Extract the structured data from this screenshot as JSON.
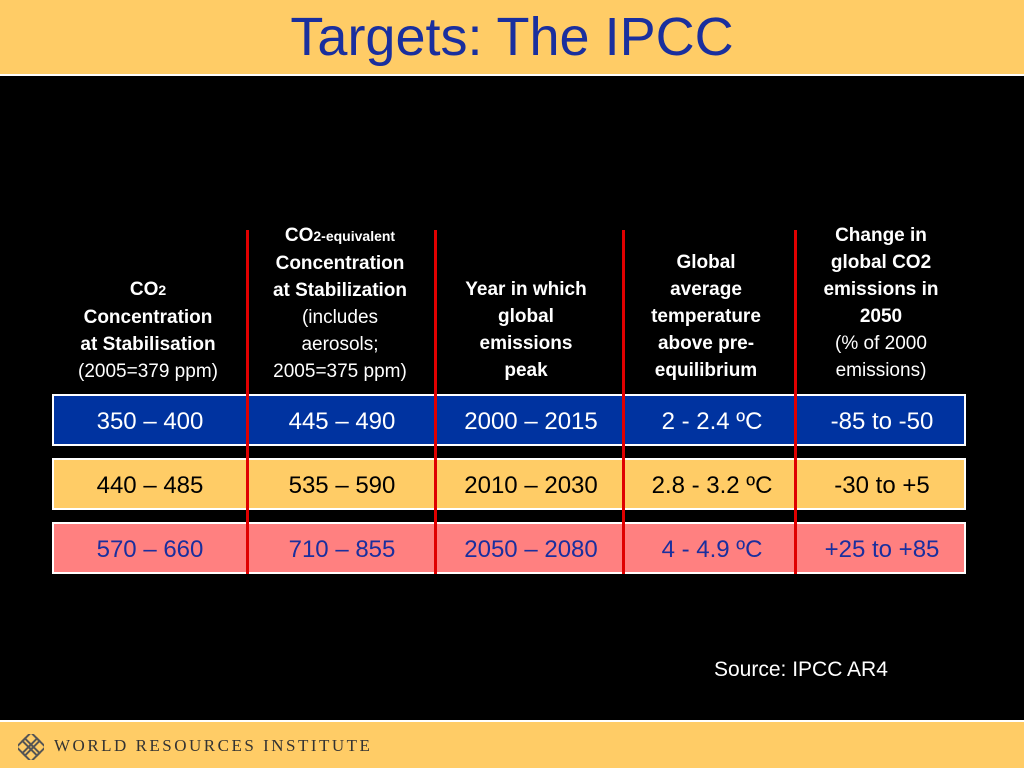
{
  "title": "Targets: The IPCC",
  "headers": [
    {
      "lines": [
        {
          "main": "CO",
          "sub": "2"
        },
        {
          "main": "Concentration"
        },
        {
          "main": "at Stabilisation"
        }
      ],
      "note_lines": [
        "(2005=379 ppm)"
      ]
    },
    {
      "lines": [
        {
          "main": "CO",
          "sub": "2-equivalent"
        },
        {
          "main": "Concentration"
        },
        {
          "main": "at Stabilization"
        }
      ],
      "note_lines": [
        "(includes",
        "aerosols;",
        "2005=375 ppm)"
      ]
    },
    {
      "lines": [
        {
          "main": "Year in which"
        },
        {
          "main": "global"
        },
        {
          "main": "emissions"
        },
        {
          "main": "peak"
        }
      ],
      "note_lines": []
    },
    {
      "lines": [
        {
          "main": "Global"
        },
        {
          "main": "average"
        },
        {
          "main": "temperature"
        },
        {
          "main": "above pre-"
        },
        {
          "main": "equilibrium"
        }
      ],
      "note_lines": []
    },
    {
      "lines": [
        {
          "main": "Change in"
        },
        {
          "main": "global CO2"
        },
        {
          "main": "emissions in"
        },
        {
          "main": "2050"
        }
      ],
      "note_lines": [
        "(% of 2000",
        "emissions)"
      ]
    }
  ],
  "rows": [
    {
      "bg": "#0033A0",
      "fg": "#FFFFFF",
      "cells": [
        "350 – 400",
        "445 – 490",
        "2000 – 2015",
        "2 - 2.4 ºC",
        "-85 to -50"
      ]
    },
    {
      "bg": "#FFCC66",
      "fg": "#000000",
      "cells": [
        "440 – 485",
        "535 – 590",
        "2010 – 2030",
        "2.8 - 3.2 ºC",
        "-30 to +5"
      ]
    },
    {
      "bg": "#FF8080",
      "fg": "#1A2F9E",
      "cells": [
        "570 – 660",
        "710 – 855",
        "2050 – 2080",
        "4 - 4.9 ºC",
        "+25 to +85"
      ]
    }
  ],
  "source": "Source: IPCC AR4",
  "footer": {
    "org": "WORLD RESOURCES INSTITUTE",
    "logo_icon": "wri-knot-logo-icon"
  },
  "colors": {
    "title": "#1A2F9E",
    "bars": "#FFCC66",
    "dividers": "#E00000"
  }
}
